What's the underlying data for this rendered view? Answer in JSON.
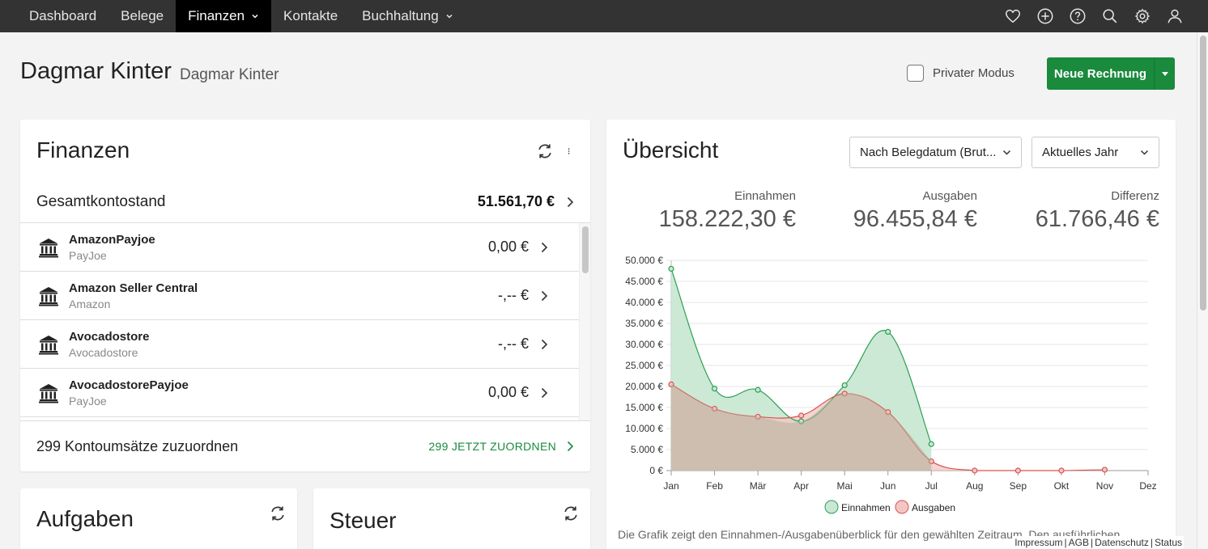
{
  "nav": {
    "items": [
      {
        "label": "Dashboard",
        "active": false,
        "dropdown": false
      },
      {
        "label": "Belege",
        "active": false,
        "dropdown": false
      },
      {
        "label": "Finanzen",
        "active": true,
        "dropdown": true
      },
      {
        "label": "Kontakte",
        "active": false,
        "dropdown": false
      },
      {
        "label": "Buchhaltung",
        "active": false,
        "dropdown": true
      }
    ],
    "icons": [
      "heart-icon",
      "plus-circle-icon",
      "help-icon",
      "search-icon",
      "gear-icon",
      "user-icon"
    ]
  },
  "header": {
    "title": "Dagmar Kinter",
    "subtitle": "Dagmar Kinter",
    "private_mode_label": "Privater Modus",
    "private_mode_checked": false,
    "new_invoice_label": "Neue Rechnung",
    "accent": "#1a8a3d"
  },
  "finanzen": {
    "title": "Finanzen",
    "total_label": "Gesamtkontostand",
    "total_value": "51.561,70 €",
    "accounts": [
      {
        "name": "AmazonPayjoe",
        "sub": "PayJoe",
        "value": "0,00 €"
      },
      {
        "name": "Amazon Seller Central",
        "sub": "Amazon",
        "value": "-,-- €"
      },
      {
        "name": "Avocadostore",
        "sub": "Avocadostore",
        "value": "-,-- €"
      },
      {
        "name": "AvocadostorePayjoe",
        "sub": "PayJoe",
        "value": "0,00 €"
      }
    ],
    "assign_label": "299 Kontoumsätze zuzuordnen",
    "assign_link": "299 JETZT ZUORDNEN"
  },
  "aufgaben": {
    "title": "Aufgaben"
  },
  "steuer": {
    "title": "Steuer"
  },
  "uebersicht": {
    "title": "Übersicht",
    "select_date": "Nach Belegdatum (Brut...",
    "select_period": "Aktuelles Jahr",
    "stats": [
      {
        "label": "Einnahmen",
        "value": "158.222,30 €"
      },
      {
        "label": "Ausgaben",
        "value": "96.455,84 €"
      },
      {
        "label": "Differenz",
        "value": "61.766,46 €"
      }
    ],
    "caption": "Die Grafik zeigt den Einnahmen-/Ausgabenüberblick für den gewählten Zeitraum. Den ausführlichen"
  },
  "chart_data": {
    "type": "area",
    "categories": [
      "Jan",
      "Feb",
      "Mär",
      "Apr",
      "Mai",
      "Jun",
      "Jul",
      "Aug",
      "Sep",
      "Okt",
      "Nov",
      "Dez"
    ],
    "y_ticks": [
      "0 €",
      "5.000 €",
      "10.000 €",
      "15.000 €",
      "20.000 €",
      "25.000 €",
      "30.000 €",
      "35.000 €",
      "40.000 €",
      "45.000 €",
      "50.000 €"
    ],
    "ylim": [
      0,
      50000
    ],
    "grid": true,
    "legend_position": "bottom",
    "series": [
      {
        "name": "Einnahmen",
        "color": "#2e9e55",
        "fill": "#c9e8d3",
        "values": [
          48000,
          19500,
          19200,
          11700,
          20300,
          33000,
          6300,
          null,
          null,
          null,
          null,
          null
        ]
      },
      {
        "name": "Ausgaben",
        "color": "#d9534f",
        "fill": "#f2c6c4",
        "values": [
          20500,
          14700,
          12800,
          13100,
          18300,
          13900,
          2200,
          0,
          0,
          0,
          200,
          null
        ]
      }
    ]
  },
  "footer": {
    "links": [
      "Impressum",
      "AGB",
      "Datenschutz",
      "Status"
    ]
  }
}
